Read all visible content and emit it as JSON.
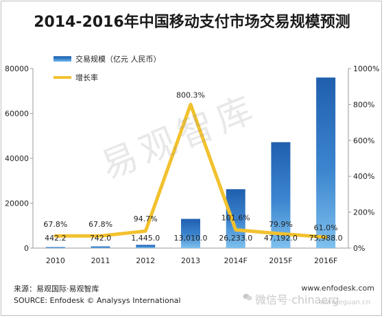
{
  "chart_data": {
    "type": "bar",
    "title": "2014-2016年中国移动支付市场交易规模预测",
    "categories": [
      "2010",
      "2011",
      "2012",
      "2013",
      "2014F",
      "2015F",
      "2016F"
    ],
    "series": [
      {
        "name": "交易规模（亿元 人民币）",
        "type": "bar",
        "axis": "left",
        "values": [
          442.2,
          742.0,
          1445.0,
          13010.0,
          26233.0,
          47192.0,
          75988.0
        ],
        "labels": [
          "442.2",
          "742.0",
          "1,445.0",
          "13,010.0",
          "26,233.0",
          "47,192.0",
          "75,988.0"
        ]
      },
      {
        "name": "增长率",
        "type": "line",
        "axis": "right",
        "values": [
          67.8,
          67.8,
          94.7,
          800.3,
          101.6,
          79.9,
          61.0
        ],
        "labels": [
          "67.8%",
          "67.8%",
          "94.7%",
          "800.3%",
          "101.6%",
          "79.9%",
          "61.0%"
        ]
      }
    ],
    "ylim_left": [
      0,
      80000
    ],
    "yticks_left": [
      "0",
      "20000",
      "40000",
      "60000",
      "80000"
    ],
    "ylim_right": [
      0,
      1000
    ],
    "yticks_right": [
      "0%",
      "200%",
      "400%",
      "600%",
      "800%",
      "1000%"
    ],
    "legend_position": "top-left",
    "grid": false,
    "colors": {
      "bar": "#2f76c1",
      "bar_light": "#5aa5e0",
      "line": "#f2c12e"
    }
  },
  "footer": {
    "source_cn": "来源：易观国际·易观智库",
    "source_en": "SOURCE: Enfodesk © Analysys International",
    "website": "www.enfodesk.com"
  },
  "watermarks": {
    "center": "易观智库",
    "wechat": "微信号·chinaerg",
    "site": "www.eguan.cn"
  }
}
